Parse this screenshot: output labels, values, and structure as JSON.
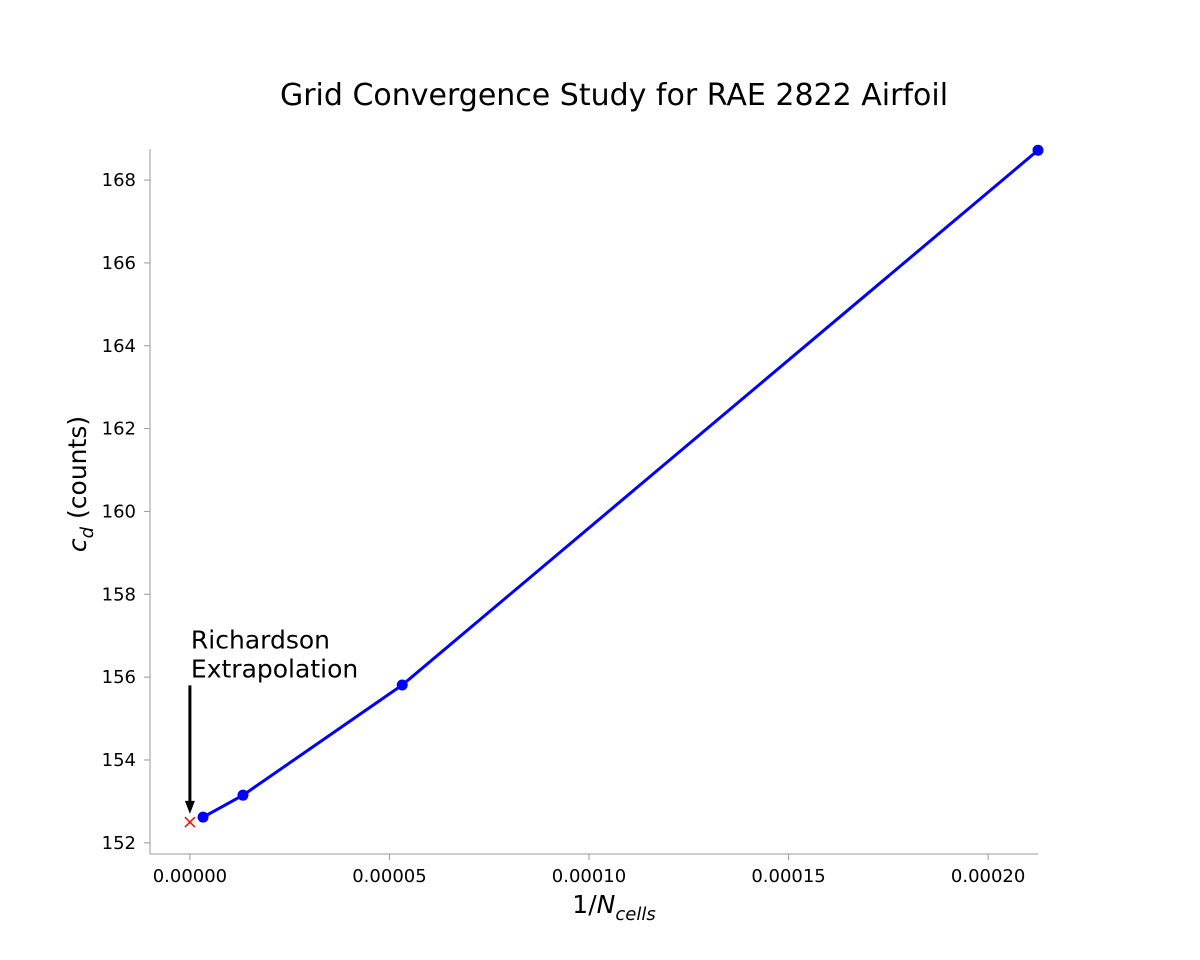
{
  "chart_data": {
    "type": "line",
    "title": "Grid Convergence Study for RAE 2822 Airfoil",
    "xlabel": {
      "prefix": "1/",
      "main": "N",
      "sub": "cells"
    },
    "ylabel": {
      "main": "c",
      "sub": "d",
      "suffix": " (counts)"
    },
    "xlim": [
      -1e-05,
      0.0002125
    ],
    "ylim": [
      151.73,
      168.75
    ],
    "xticks": [
      0.0,
      5e-05,
      0.0001,
      0.00015,
      0.0002
    ],
    "xtick_labels": [
      "0.00000",
      "0.00005",
      "0.00010",
      "0.00015",
      "0.00020"
    ],
    "yticks": [
      152,
      154,
      156,
      158,
      160,
      162,
      164,
      166,
      168
    ],
    "ytick_labels": [
      "152",
      "154",
      "156",
      "158",
      "160",
      "162",
      "164",
      "166",
      "168"
    ],
    "grid": false,
    "series": [
      {
        "x": [
          3.3e-06,
          1.33e-05,
          5.32e-05,
          0.0002125
        ],
        "y": [
          152.62,
          153.15,
          155.81,
          168.72
        ],
        "color": "#0000ff",
        "marker": "circle"
      }
    ],
    "extrapolated_point": {
      "x": 0.0,
      "y": 152.5,
      "color": "#ff0000",
      "marker": "x"
    },
    "annotation": {
      "lines": [
        "Richardson",
        "Extrapolation"
      ],
      "target_x": 0.0,
      "target_y": 152.7,
      "text_x": 0.0,
      "text_y": 155.8
    }
  }
}
